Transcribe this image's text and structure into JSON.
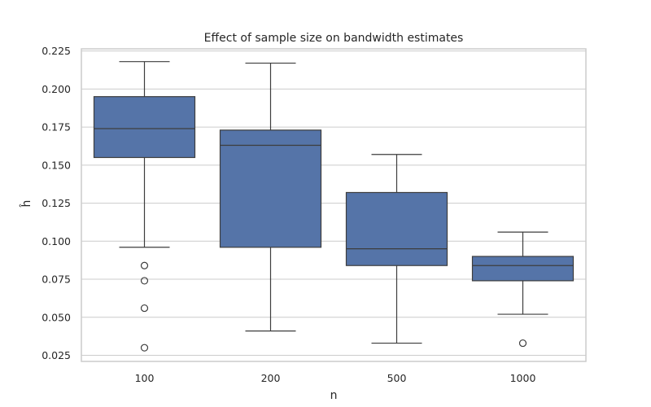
{
  "chart_data": {
    "type": "box",
    "title": "Effect of sample size on bandwidth estimates",
    "xlabel": "n",
    "ylabel": "ĥ",
    "ylim": [
      0.021,
      0.2264
    ],
    "yticks": [
      0.025,
      0.05,
      0.075,
      0.1,
      0.125,
      0.15,
      0.175,
      0.2,
      0.225
    ],
    "ytick_labels": [
      "0.025",
      "0.050",
      "0.075",
      "0.100",
      "0.125",
      "0.150",
      "0.175",
      "0.200",
      "0.225"
    ],
    "grid": true,
    "box_color": "#5574a8",
    "categories": [
      "100",
      "200",
      "500",
      "1000"
    ],
    "boxes": [
      {
        "category": "100",
        "whislo": 0.096,
        "q1": 0.155,
        "med": 0.174,
        "q3": 0.195,
        "whishi": 0.218,
        "fliers": [
          0.084,
          0.074,
          0.056,
          0.03
        ]
      },
      {
        "category": "200",
        "whislo": 0.041,
        "q1": 0.096,
        "med": 0.163,
        "q3": 0.173,
        "whishi": 0.217,
        "fliers": []
      },
      {
        "category": "500",
        "whislo": 0.033,
        "q1": 0.084,
        "med": 0.095,
        "q3": 0.132,
        "whishi": 0.157,
        "fliers": []
      },
      {
        "category": "1000",
        "whislo": 0.052,
        "q1": 0.074,
        "med": 0.084,
        "q3": 0.09,
        "whishi": 0.106,
        "fliers": [
          0.033
        ]
      }
    ]
  }
}
